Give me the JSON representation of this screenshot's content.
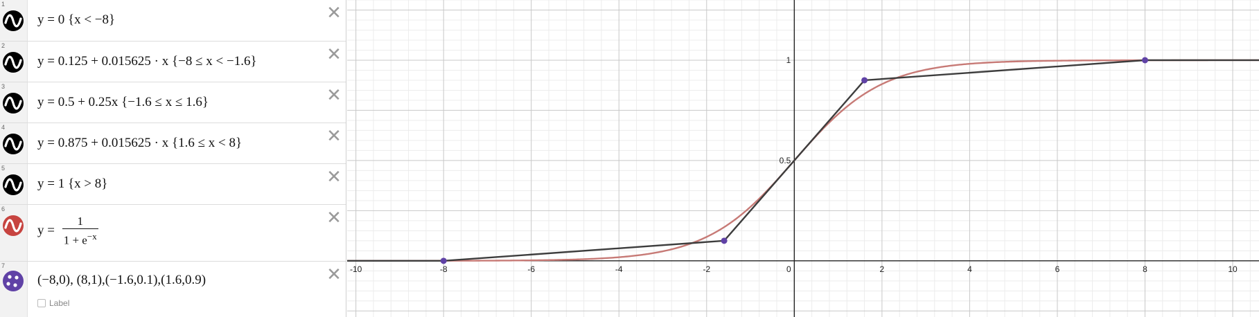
{
  "expressions": [
    {
      "num": "1",
      "icon": "wave-icon",
      "color": "#000000",
      "line": "y = 0 {x < −8}",
      "delete_label": "✕"
    },
    {
      "num": "2",
      "icon": "wave-icon",
      "color": "#000000",
      "line": "y = 0.125 + 0.015625 · x {−8 ≤ x < −1.6}",
      "delete_label": "✕"
    },
    {
      "num": "3",
      "icon": "wave-icon",
      "color": "#000000",
      "line": "y = 0.5 + 0.25x {−1.6 ≤ x ≤ 1.6}",
      "delete_label": "✕"
    },
    {
      "num": "4",
      "icon": "wave-icon",
      "color": "#000000",
      "line": "y = 0.875 + 0.015625 · x {1.6 ≤ x < 8}",
      "delete_label": "✕"
    },
    {
      "num": "5",
      "icon": "wave-icon",
      "color": "#000000",
      "line": "y = 1 {x > 8}",
      "delete_label": "✕"
    },
    {
      "num": "6",
      "icon": "wave-icon",
      "color": "#c74440",
      "lhs": "y =",
      "numerator": "1",
      "denominator": "1 + e",
      "exponent": "−x",
      "delete_label": "✕"
    },
    {
      "num": "7",
      "icon": "points-icon",
      "color": "#6042a6",
      "line": "(−8,0), (8,1),(−1.6,0.1),(1.6,0.9)",
      "label_text": "Label",
      "delete_label": "✕"
    }
  ],
  "graph": {
    "x_ticks": [
      "-10",
      "-8",
      "-6",
      "-4",
      "-2",
      "0",
      "2",
      "4",
      "6",
      "8",
      "10"
    ],
    "y_ticks": [
      "0.5",
      "1"
    ],
    "xlim": [
      -10.2,
      10.6
    ],
    "ylim": [
      -0.28,
      1.3
    ],
    "points": [
      [
        -8,
        0
      ],
      [
        8,
        1
      ],
      [
        -1.6,
        0.1
      ],
      [
        1.6,
        0.9
      ]
    ],
    "approx_color": "#3d3d3d",
    "sigmoid_color": "#c77a76",
    "point_color": "#6042a6"
  }
}
